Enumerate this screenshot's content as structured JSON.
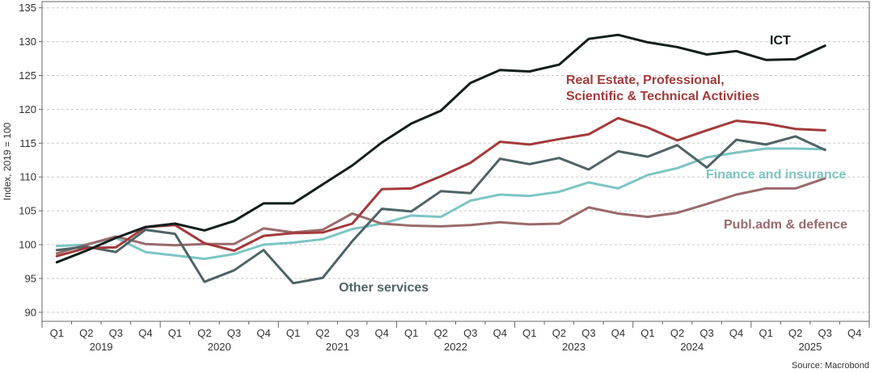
{
  "chart_data": {
    "type": "line",
    "title": "",
    "xlabel": "",
    "ylabel": "Index, 2019 = 100",
    "ylim": [
      89,
      136
    ],
    "yticks": [
      90,
      95,
      100,
      105,
      110,
      115,
      120,
      125,
      130,
      135
    ],
    "grid": true,
    "quarters": [
      "Q1",
      "Q2",
      "Q3",
      "Q4",
      "Q1",
      "Q2",
      "Q3",
      "Q4",
      "Q1",
      "Q2",
      "Q3",
      "Q4",
      "Q1",
      "Q2",
      "Q3",
      "Q4",
      "Q1",
      "Q2",
      "Q3",
      "Q4",
      "Q1",
      "Q2",
      "Q3",
      "Q4",
      "Q1",
      "Q2",
      "Q3",
      "Q4"
    ],
    "years": [
      "2019",
      "2020",
      "2021",
      "2022",
      "2023",
      "2024",
      "2025"
    ],
    "source": "Source: Macrobond",
    "series": [
      {
        "name": "ICT",
        "color": "#0f1f1c",
        "label_color": "#0f1f1c",
        "values": [
          97.4,
          99.1,
          101.0,
          102.6,
          103.1,
          102.1,
          103.5,
          106.1,
          106.1,
          108.9,
          111.7,
          115.1,
          117.9,
          119.8,
          123.9,
          125.8,
          125.6,
          126.6,
          130.4,
          131.0,
          129.9,
          129.2,
          128.1,
          128.6,
          127.3,
          127.4,
          129.4
        ]
      },
      {
        "name": "Real Estate, Professional, Scientific & Technical Activities",
        "label_lines": [
          "Real Estate, Professional,",
          "Scientific & Technical Activities"
        ],
        "color": "#a33a3a",
        "label_color": "#a33a3a",
        "values": [
          98.3,
          99.5,
          99.6,
          102.6,
          102.9,
          100.2,
          99.1,
          101.3,
          101.7,
          101.8,
          103.1,
          108.2,
          108.3,
          110.1,
          112.1,
          115.2,
          114.8,
          115.6,
          116.3,
          118.7,
          117.3,
          115.4,
          116.9,
          118.3,
          117.9,
          117.1,
          116.9
        ]
      },
      {
        "name": "Other services",
        "color": "#4e6466",
        "label_color": "#4e6466",
        "values": [
          99.2,
          99.7,
          98.9,
          102.2,
          101.6,
          94.5,
          96.2,
          99.2,
          94.3,
          95.1,
          100.5,
          105.3,
          104.9,
          107.9,
          107.6,
          112.7,
          111.9,
          112.8,
          111.1,
          113.8,
          113.0,
          114.7,
          111.4,
          115.5,
          114.8,
          116.0,
          114.0
        ]
      },
      {
        "name": "Finance and insurance",
        "color": "#7ec4c4",
        "label_color": "#7ec4c4",
        "values": [
          99.8,
          100.0,
          101.0,
          98.9,
          98.4,
          97.9,
          98.6,
          100.0,
          100.3,
          100.8,
          102.3,
          103.1,
          104.3,
          104.1,
          106.5,
          107.4,
          107.2,
          107.8,
          109.2,
          108.3,
          110.3,
          111.3,
          112.9,
          113.6,
          114.2,
          114.2,
          114.1
        ]
      },
      {
        "name": "Publ.adm & defence",
        "color": "#9a6a6a",
        "label_color": "#9a6a6a",
        "values": [
          98.7,
          100.0,
          101.2,
          100.1,
          99.9,
          100.1,
          100.1,
          102.4,
          101.8,
          102.2,
          104.6,
          103.1,
          102.8,
          102.7,
          102.9,
          103.3,
          103.0,
          103.1,
          105.5,
          104.6,
          104.1,
          104.7,
          106.0,
          107.4,
          108.3,
          108.3,
          109.8
        ]
      }
    ]
  }
}
